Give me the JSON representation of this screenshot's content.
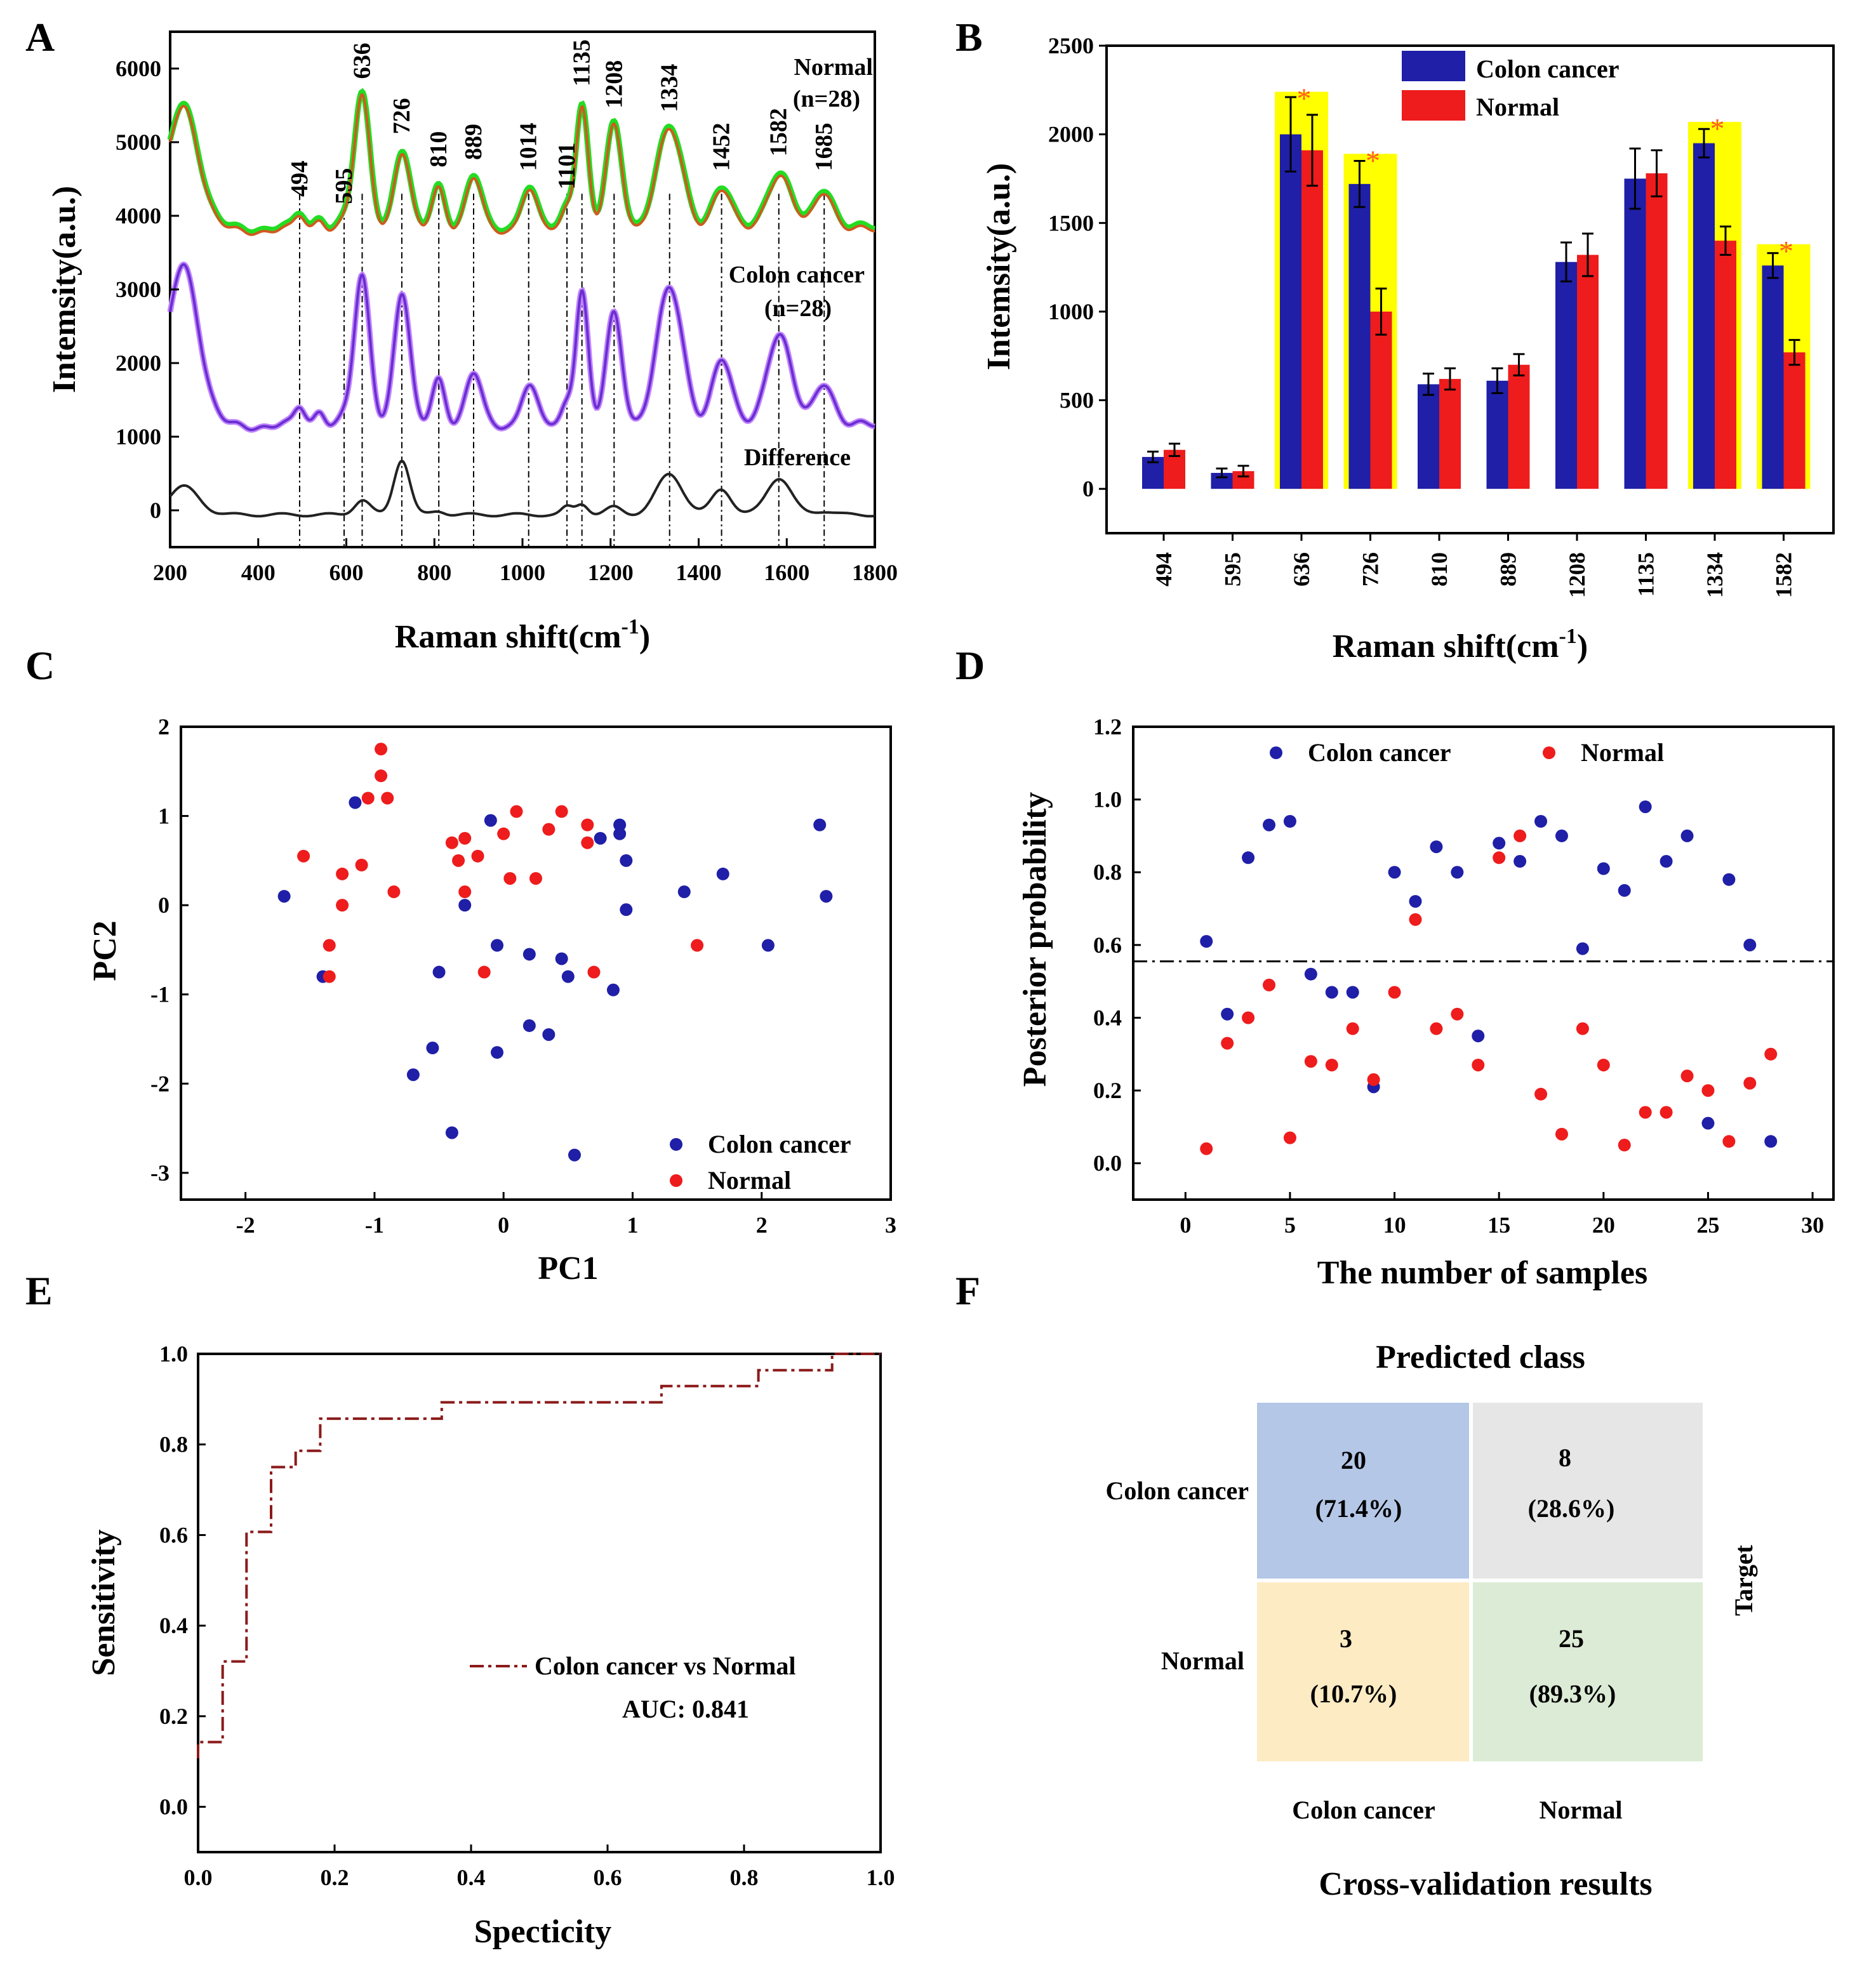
{
  "colors": {
    "cancer": "#1f1fa8",
    "normal": "#ee1c1c",
    "highlight": "#ffff00",
    "star": "#ff5a1f",
    "normal_spectrum": "#d05a1f",
    "normal_edge": "#22dd22",
    "cancer_spectrum": "#6a2fd0",
    "diff_spectrum": "#222222",
    "roc": "#8b1a1a",
    "cm_tp": "#b4c7e7",
    "cm_fn": "#e6e6e6",
    "cm_fp": "#fdebc3",
    "cm_tn": "#dcebd5"
  },
  "panel_letters": [
    "A",
    "B",
    "C",
    "D",
    "E",
    "F"
  ],
  "chart_data": [
    {
      "id": "A",
      "type": "line",
      "xlabel": "Raman shift(cm",
      "xlabel_sup": "-1",
      "xlabel_suffix": ")",
      "ylabel": "Intemsity(a.u.)",
      "xlim": [
        200,
        1800
      ],
      "ylim": [
        -500,
        6500
      ],
      "xticks": [
        200,
        400,
        600,
        800,
        1000,
        1200,
        1400,
        1600,
        1800
      ],
      "yticks": [
        0,
        1000,
        2000,
        3000,
        4000,
        5000,
        6000
      ],
      "peak_labels": [
        "494",
        "595",
        "636",
        "726",
        "810",
        "889",
        "1014",
        "1101",
        "1135",
        "1208",
        "1334",
        "1452",
        "1582",
        "1685"
      ],
      "peaks": [
        {
          "pos": 230,
          "width": 35,
          "normal": 1700,
          "cancer": 2200,
          "diff": 380
        },
        {
          "pos": 494,
          "width": 12,
          "normal": 200,
          "cancer": 250,
          "diff": 0
        },
        {
          "pos": 540,
          "width": 12,
          "normal": 180,
          "cancer": 230,
          "diff": 0
        },
        {
          "pos": 595,
          "width": 12,
          "normal": 100,
          "cancer": 100,
          "diff": 0
        },
        {
          "pos": 636,
          "width": 18,
          "normal": 1800,
          "cancer": 2000,
          "diff": 200
        },
        {
          "pos": 726,
          "width": 18,
          "normal": 1050,
          "cancer": 1800,
          "diff": 750
        },
        {
          "pos": 810,
          "width": 15,
          "normal": 600,
          "cancer": 650,
          "diff": 50
        },
        {
          "pos": 889,
          "width": 18,
          "normal": 700,
          "cancer": 700,
          "diff": 0
        },
        {
          "pos": 1014,
          "width": 18,
          "normal": 550,
          "cancer": 550,
          "diff": 0
        },
        {
          "pos": 1101,
          "width": 12,
          "normal": 300,
          "cancer": 300,
          "diff": 100
        },
        {
          "pos": 1135,
          "width": 14,
          "normal": 1700,
          "cancer": 1850,
          "diff": 150
        },
        {
          "pos": 1208,
          "width": 18,
          "normal": 1400,
          "cancer": 1500,
          "diff": 100
        },
        {
          "pos": 1334,
          "width": 30,
          "normal": 1350,
          "cancer": 1850,
          "diff": 550
        },
        {
          "pos": 1452,
          "width": 22,
          "normal": 550,
          "cancer": 900,
          "diff": 350
        },
        {
          "pos": 1582,
          "width": 28,
          "normal": 750,
          "cancer": 1250,
          "diff": 500
        },
        {
          "pos": 1685,
          "width": 22,
          "normal": 550,
          "cancer": 600,
          "diff": 50
        }
      ],
      "baselines": {
        "normal": 3800,
        "cancer": 1150,
        "diff": -60
      },
      "series": [
        {
          "name": "Normal",
          "sub": "(n=28)"
        },
        {
          "name": "Colon cancer",
          "sub": "(n=28)"
        },
        {
          "name": "Difference",
          "sub": ""
        }
      ]
    },
    {
      "id": "B",
      "type": "bar",
      "xlabel": "Raman shift(cm",
      "xlabel_sup": "-1",
      "xlabel_suffix": ")",
      "ylabel": "Intemsity(a.u.)",
      "ylim": [
        -250,
        2500
      ],
      "yticks": [
        0,
        500,
        1000,
        1500,
        2000,
        2500
      ],
      "categories": [
        "494",
        "595",
        "636",
        "726",
        "810",
        "889",
        "1208",
        "1135",
        "1334",
        "1582"
      ],
      "series": [
        {
          "name": "Colon cancer",
          "values": [
            180,
            90,
            2000,
            1720,
            590,
            610,
            1280,
            1750,
            1950,
            1260
          ],
          "errors": [
            30,
            25,
            210,
            130,
            60,
            70,
            110,
            170,
            80,
            70
          ]
        },
        {
          "name": "Normal",
          "values": [
            220,
            100,
            1910,
            1000,
            620,
            700,
            1320,
            1780,
            1400,
            770
          ],
          "errors": [
            35,
            30,
            200,
            130,
            60,
            60,
            120,
            130,
            80,
            70
          ]
        }
      ],
      "significant": [
        false,
        false,
        true,
        true,
        false,
        false,
        false,
        false,
        true,
        true
      ],
      "significance_mark": "*",
      "highlight_tops": [
        2240,
        1890,
        2070,
        1380
      ]
    },
    {
      "id": "C",
      "type": "scatter",
      "xlabel": "PC1",
      "ylabel": "PC2",
      "xlim": [
        -2.5,
        3
      ],
      "ylim": [
        -3.3,
        2
      ],
      "xticks": [
        -2,
        -1,
        0,
        1,
        2,
        3
      ],
      "yticks": [
        -3,
        -2,
        -1,
        0,
        1,
        2
      ],
      "series": [
        {
          "name": "Colon cancer",
          "points": [
            [
              -1.7,
              0.1
            ],
            [
              -1.15,
              1.15
            ],
            [
              -1.4,
              -0.8
            ],
            [
              -0.7,
              -1.9
            ],
            [
              -0.55,
              -1.6
            ],
            [
              -0.5,
              -0.75
            ],
            [
              -0.4,
              -2.55
            ],
            [
              -0.3,
              0.0
            ],
            [
              -0.1,
              0.95
            ],
            [
              -0.05,
              -0.45
            ],
            [
              -0.05,
              -1.65
            ],
            [
              0.2,
              -0.55
            ],
            [
              0.2,
              -1.35
            ],
            [
              0.35,
              -1.45
            ],
            [
              0.45,
              -0.6
            ],
            [
              0.5,
              -0.8
            ],
            [
              0.55,
              -2.8
            ],
            [
              0.75,
              0.75
            ],
            [
              0.9,
              0.9
            ],
            [
              0.9,
              0.8
            ],
            [
              0.95,
              0.5
            ],
            [
              0.95,
              -0.05
            ],
            [
              0.85,
              -0.95
            ],
            [
              1.4,
              0.15
            ],
            [
              1.7,
              0.35
            ],
            [
              2.05,
              -0.45
            ],
            [
              2.45,
              0.9
            ],
            [
              2.5,
              0.1
            ]
          ]
        },
        {
          "name": "Normal",
          "points": [
            [
              -1.55,
              0.55
            ],
            [
              -1.25,
              0.35
            ],
            [
              -1.25,
              0.0
            ],
            [
              -1.35,
              -0.45
            ],
            [
              -1.35,
              -0.8
            ],
            [
              -1.1,
              0.45
            ],
            [
              -1.05,
              1.2
            ],
            [
              -0.95,
              1.45
            ],
            [
              -0.95,
              1.75
            ],
            [
              -0.9,
              1.2
            ],
            [
              -0.85,
              0.15
            ],
            [
              -0.4,
              0.7
            ],
            [
              -0.35,
              0.5
            ],
            [
              -0.3,
              0.75
            ],
            [
              -0.3,
              0.15
            ],
            [
              -0.2,
              0.55
            ],
            [
              -0.15,
              -0.75
            ],
            [
              0.0,
              0.8
            ],
            [
              0.05,
              0.3
            ],
            [
              0.1,
              1.05
            ],
            [
              0.25,
              0.3
            ],
            [
              0.35,
              0.85
            ],
            [
              0.45,
              1.05
            ],
            [
              0.65,
              0.7
            ],
            [
              0.65,
              0.9
            ],
            [
              0.7,
              -0.75
            ],
            [
              1.5,
              -0.45
            ]
          ]
        }
      ]
    },
    {
      "id": "D",
      "type": "scatter",
      "xlabel": "The number of samples",
      "ylabel": "Posterior probability",
      "xlim": [
        -2.5,
        31
      ],
      "ylim": [
        -0.1,
        1.2
      ],
      "xticks": [
        0,
        5,
        10,
        15,
        20,
        25,
        30
      ],
      "yticks": [
        0.0,
        0.2,
        0.4,
        0.6,
        0.8,
        1.0,
        1.2
      ],
      "threshold": 0.555,
      "series": [
        {
          "name": "Colon cancer",
          "points": [
            [
              1,
              0.61
            ],
            [
              2,
              0.41
            ],
            [
              3,
              0.84
            ],
            [
              4,
              0.93
            ],
            [
              5,
              0.94
            ],
            [
              6,
              0.52
            ],
            [
              7,
              0.47
            ],
            [
              8,
              0.47
            ],
            [
              9,
              0.21
            ],
            [
              10,
              0.8
            ],
            [
              11,
              0.72
            ],
            [
              12,
              0.87
            ],
            [
              13,
              0.8
            ],
            [
              14,
              0.35
            ],
            [
              15,
              0.88
            ],
            [
              16,
              0.83
            ],
            [
              17,
              0.94
            ],
            [
              18,
              0.9
            ],
            [
              19,
              0.59
            ],
            [
              20,
              0.81
            ],
            [
              21,
              0.75
            ],
            [
              22,
              0.98
            ],
            [
              23,
              0.83
            ],
            [
              24,
              0.9
            ],
            [
              25,
              0.11
            ],
            [
              26,
              0.78
            ],
            [
              27,
              0.6
            ],
            [
              28,
              0.06
            ]
          ]
        },
        {
          "name": "Normal",
          "points": [
            [
              1,
              0.04
            ],
            [
              2,
              0.33
            ],
            [
              3,
              0.4
            ],
            [
              4,
              0.49
            ],
            [
              5,
              0.07
            ],
            [
              6,
              0.28
            ],
            [
              7,
              0.27
            ],
            [
              8,
              0.37
            ],
            [
              9,
              0.23
            ],
            [
              10,
              0.47
            ],
            [
              11,
              0.67
            ],
            [
              12,
              0.37
            ],
            [
              13,
              0.41
            ],
            [
              14,
              0.27
            ],
            [
              15,
              0.84
            ],
            [
              16,
              0.9
            ],
            [
              17,
              0.19
            ],
            [
              18,
              0.08
            ],
            [
              19,
              0.37
            ],
            [
              20,
              0.27
            ],
            [
              21,
              0.05
            ],
            [
              22,
              0.14
            ],
            [
              23,
              0.14
            ],
            [
              24,
              0.24
            ],
            [
              25,
              0.2
            ],
            [
              26,
              0.06
            ],
            [
              27,
              0.22
            ],
            [
              28,
              0.3
            ]
          ]
        }
      ]
    },
    {
      "id": "E",
      "type": "line",
      "xlabel": "Specticity",
      "ylabel": "Sensitivity",
      "xlim": [
        0,
        1
      ],
      "ylim": [
        -0.1,
        1.0
      ],
      "xticks": [
        0.0,
        0.2,
        0.4,
        0.6,
        0.8,
        1.0
      ],
      "yticks": [
        0.0,
        0.2,
        0.4,
        0.6,
        0.8,
        1.0
      ],
      "series": [
        {
          "name": "Colon cancer vs Normal",
          "x": [
            0,
            0,
            0.036,
            0.036,
            0.071,
            0.071,
            0.107,
            0.107,
            0.143,
            0.143,
            0.179,
            0.179,
            0.357,
            0.357,
            0.393,
            0.393,
            0.679,
            0.679,
            0.821,
            0.821,
            0.929,
            0.929,
            1.0
          ],
          "y": [
            0.107,
            0.143,
            0.143,
            0.321,
            0.321,
            0.607,
            0.607,
            0.75,
            0.75,
            0.786,
            0.786,
            0.857,
            0.857,
            0.893,
            0.893,
            0.893,
            0.893,
            0.929,
            0.929,
            0.964,
            0.964,
            1.0,
            1.0
          ]
        }
      ],
      "auc_label": "AUC:  0.841"
    },
    {
      "id": "F",
      "type": "table",
      "title": "Predicted class",
      "caption": "Cross-validation results",
      "side_label": "Target",
      "row_labels": [
        "Colon cancer",
        "Normal"
      ],
      "col_labels": [
        "Colon cancer",
        "Normal"
      ],
      "cells": [
        [
          {
            "count": "20",
            "pct": "(71.4%)"
          },
          {
            "count": "8",
            "pct": "(28.6%)"
          }
        ],
        [
          {
            "count": "3",
            "pct": "(10.7%)"
          },
          {
            "count": "25",
            "pct": "(89.3%)"
          }
        ]
      ]
    }
  ]
}
